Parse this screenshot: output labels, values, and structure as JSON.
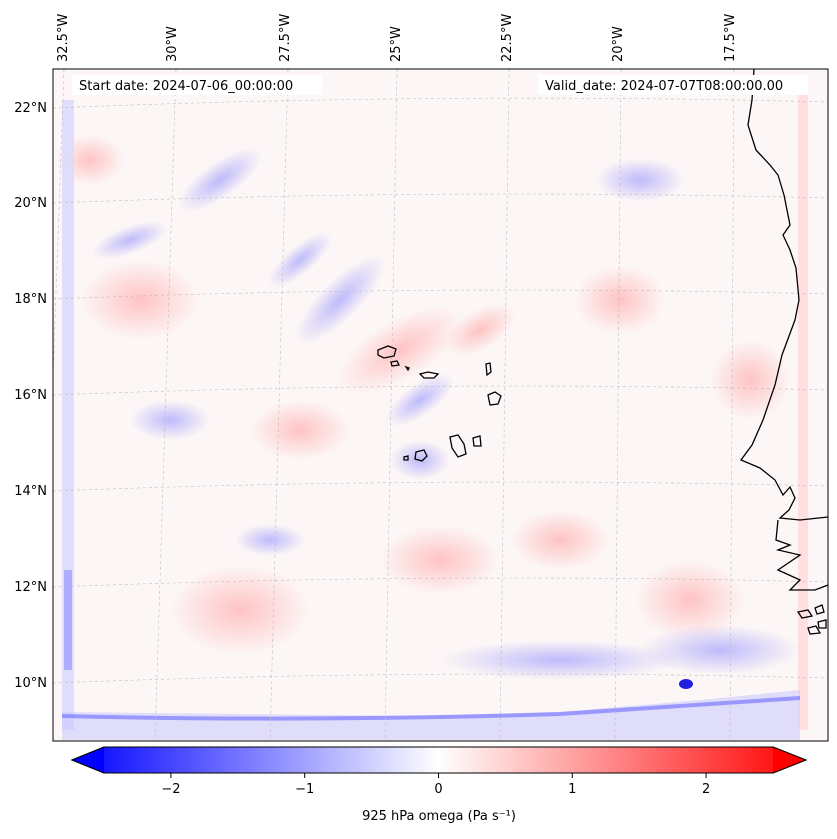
{
  "map": {
    "start_date": "Start date: 2024-07-06_00:00:00",
    "valid_date": "Valid_date: 2024-07-07T08:00:00.00",
    "lon_labels": [
      "32.5°W",
      "30°W",
      "27.5°W",
      "25°W",
      "22.5°W",
      "20°W",
      "17.5°W"
    ],
    "lat_labels": [
      "22°N",
      "20°N",
      "18°N",
      "16°N",
      "14°N",
      "12°N",
      "10°N"
    ],
    "field_colors": {
      "negative": "#0000ff",
      "neutral": "#ffffff",
      "positive": "#ff0000",
      "coastline": "#000000"
    }
  },
  "colorbar": {
    "label": "925 hPa omega (Pa s⁻¹)",
    "ticks": [
      "−2",
      "−1",
      "0",
      "1",
      "2"
    ],
    "tick_values": [
      -2,
      -1,
      0,
      1,
      2
    ],
    "range": [
      -2.6,
      2.6
    ],
    "extend": "both"
  }
}
